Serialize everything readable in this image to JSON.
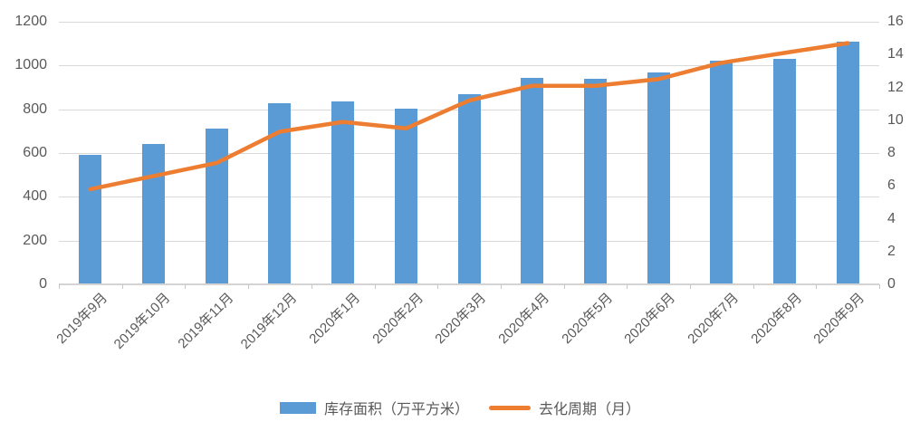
{
  "chart_data": {
    "type": "combo-bar-line",
    "title": "",
    "categories": [
      "2019年9月",
      "2019年10月",
      "2019年11月",
      "2019年12月",
      "2020年1月",
      "2020年2月",
      "2020年3月",
      "2020年4月",
      "2020年5月",
      "2020年6月",
      "2020年7月",
      "2020年8月",
      "2020年9月"
    ],
    "series": [
      {
        "name": "库存面积（万平方米）",
        "type": "bar",
        "axis": "left",
        "color": "#5B9BD5",
        "values": [
          590,
          640,
          712,
          828,
          836,
          803,
          870,
          942,
          940,
          969,
          1024,
          1031,
          1108
        ]
      },
      {
        "name": "去化周期（月）",
        "type": "line",
        "axis": "right",
        "color": "#ED7D31",
        "values": [
          5.8,
          6.6,
          7.4,
          9.3,
          9.9,
          9.5,
          11.2,
          12.1,
          12.1,
          12.5,
          13.5,
          14.1,
          14.7
        ]
      }
    ],
    "left_axis": {
      "min": 0,
      "max": 1200,
      "step": 200,
      "ticks": [
        "0",
        "200",
        "400",
        "600",
        "800",
        "1000",
        "1200"
      ]
    },
    "right_axis": {
      "min": 0,
      "max": 16,
      "step": 2,
      "ticks": [
        "0",
        "2",
        "4",
        "6",
        "8",
        "10",
        "12",
        "14",
        "16"
      ]
    },
    "grid": true,
    "legend_position": "bottom"
  },
  "colors": {
    "grid": "#D9D9D9",
    "tick_text": "#595959",
    "background": "#FFFFFF"
  }
}
